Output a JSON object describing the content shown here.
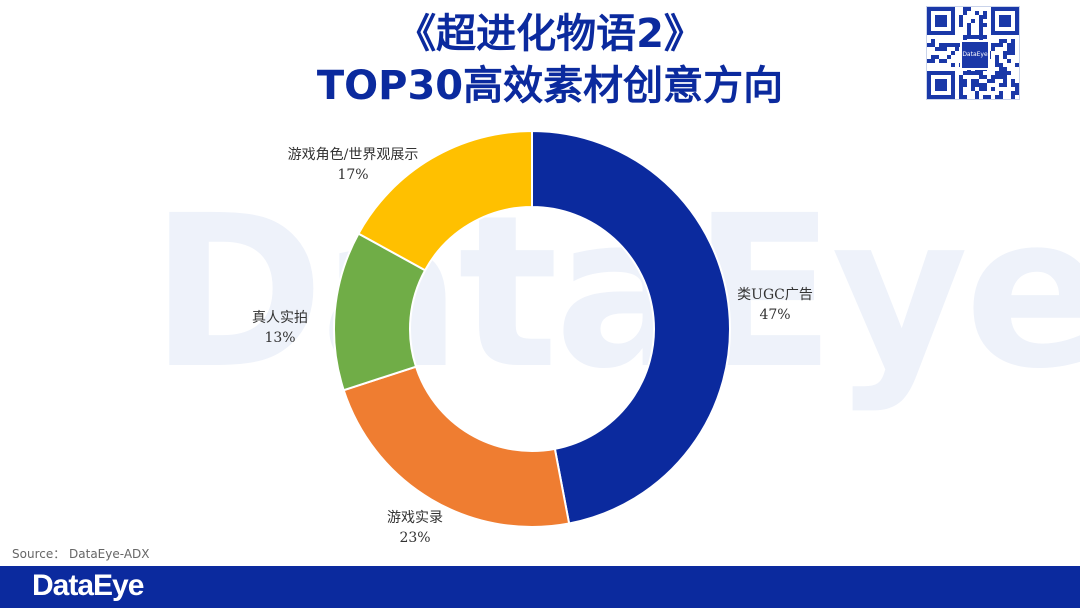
{
  "header": {
    "title_line1": "《超进化物语2》",
    "title_line2": "TOP30高效素材创意方向"
  },
  "watermark": "DataEye",
  "qr_logo": "DataEye",
  "source": "Source：  DataEye-ADX",
  "footer": {
    "brand": "DataEye"
  },
  "colors": {
    "blue": "#0b2a9e",
    "orange": "#ef7d31",
    "green": "#70ad47",
    "yellow": "#ffc000"
  },
  "chart_data": {
    "type": "pie",
    "donut": true,
    "slices": [
      {
        "label": "类UGC广告",
        "percent_text": "47%",
        "value": 47,
        "color": "#0b2a9e"
      },
      {
        "label": "游戏实录",
        "percent_text": "23%",
        "value": 23,
        "color": "#ef7d31"
      },
      {
        "label": "真人实拍",
        "percent_text": "13%",
        "value": 13,
        "color": "#70ad47"
      },
      {
        "label": "游戏角色/世界观展示",
        "percent_text": "17%",
        "value": 17,
        "color": "#ffc000"
      }
    ]
  }
}
